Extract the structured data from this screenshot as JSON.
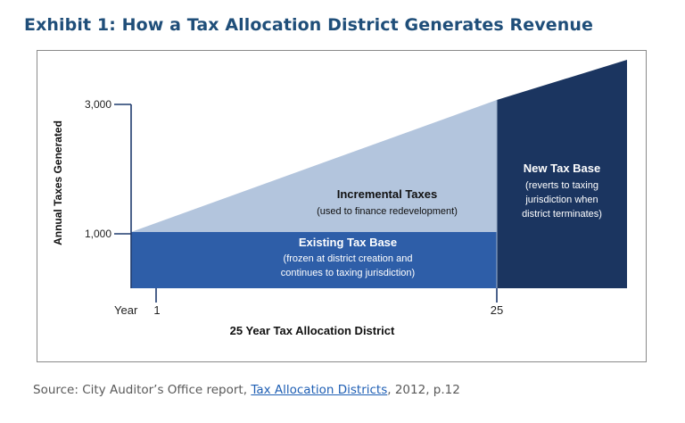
{
  "title": "Exhibit 1: How a Tax Allocation District Generates Revenue",
  "colors": {
    "title": "#1f4e79",
    "existing_base": "#2e5ea8",
    "incremental": "#b3c5dd",
    "new_base": "#1b3560",
    "axis": "#1f3b6e"
  },
  "diagram": {
    "y_axis_label": "Annual Taxes Generated",
    "y_ticks": [
      "3,000",
      "1,000"
    ],
    "x_prefix": "Year",
    "x_ticks": [
      "1",
      "25"
    ],
    "x_axis_label": "25 Year Tax Allocation District",
    "incremental": {
      "title": "Incremental Taxes",
      "subtitle": "(used to finance redevelopment)"
    },
    "existing": {
      "title": "Existing Tax Base",
      "line1": "(frozen at district creation and",
      "line2": "continues to taxing jurisdiction)"
    },
    "new_base": {
      "title": "New Tax Base",
      "line1": "(reverts to taxing",
      "line2": "jurisdiction when",
      "line3": "district terminates)"
    }
  },
  "source": {
    "prefix": "Source: City Auditor’s Office report, ",
    "link": "Tax Allocation Districts",
    "suffix": ", 2012, p.12"
  }
}
